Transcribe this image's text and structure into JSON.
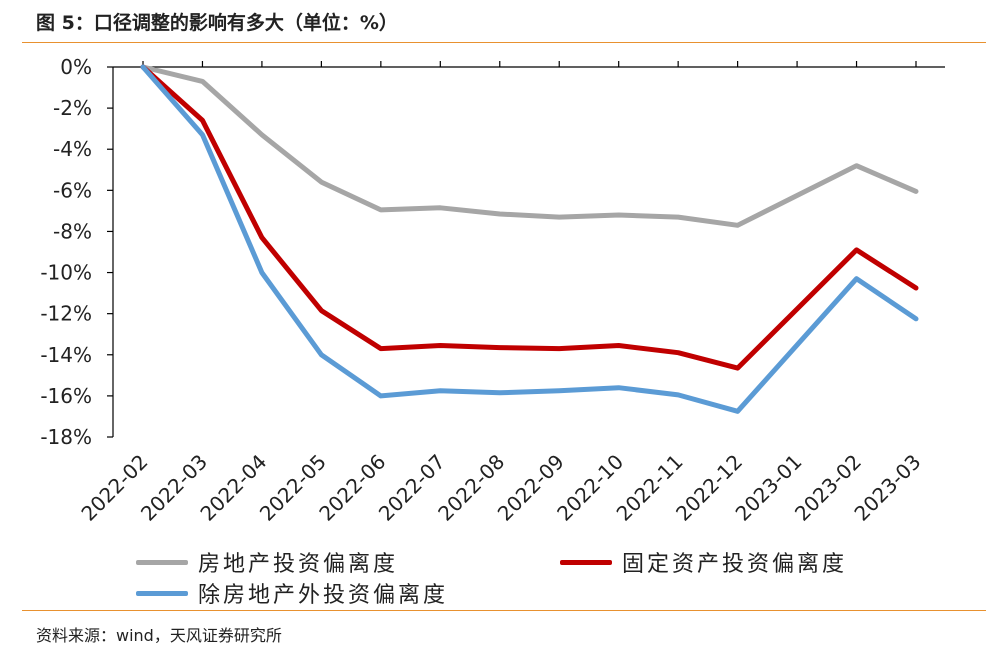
{
  "header": {
    "title": "图 5：口径调整的影响有多大（单位：%）"
  },
  "footer": {
    "source": "资料来源：wind，天风证券研究所"
  },
  "colors": {
    "accent_rule": "#e8912f",
    "axis": "#000000"
  },
  "chart_data": {
    "type": "line",
    "title": "图 5：口径调整的影响有多大（单位：%）",
    "x": [
      "2022-02",
      "2022-03",
      "2022-04",
      "2022-05",
      "2022-06",
      "2022-07",
      "2022-08",
      "2022-09",
      "2022-10",
      "2022-11",
      "2022-12",
      "2023-01",
      "2023-02",
      "2023-03"
    ],
    "ylim": [
      -18,
      0
    ],
    "yticks": [
      0,
      -2,
      -4,
      -6,
      -8,
      -10,
      -12,
      -14,
      -16,
      -18
    ],
    "ytick_labels": [
      "0%",
      "-2%",
      "-4%",
      "-6%",
      "-8%",
      "-10%",
      "-12%",
      "-14%",
      "-16%",
      "-18%"
    ],
    "xlabel": "",
    "ylabel": "",
    "grid": false,
    "legend_position": "bottom",
    "series": [
      {
        "name": "房地产投资偏离度",
        "color": "#a6a6a6",
        "values": [
          0,
          -0.7,
          -3.3,
          -5.6,
          -6.95,
          -6.85,
          -7.15,
          -7.3,
          -7.2,
          -7.3,
          -7.7,
          null,
          -4.8,
          -6.05
        ]
      },
      {
        "name": "固定资产投资偏离度",
        "color": "#c00000",
        "values": [
          0,
          -2.6,
          -8.3,
          -11.85,
          -13.7,
          -13.55,
          -13.65,
          -13.7,
          -13.55,
          -13.9,
          -14.65,
          null,
          -8.9,
          -10.75
        ]
      },
      {
        "name": "除房地产外投资偏离度",
        "color": "#5b9bd5",
        "values": [
          0,
          -3.3,
          -10.0,
          -14.0,
          -16.0,
          -15.75,
          -15.85,
          -15.75,
          -15.6,
          -15.95,
          -16.75,
          null,
          -10.3,
          -12.25
        ]
      }
    ]
  }
}
